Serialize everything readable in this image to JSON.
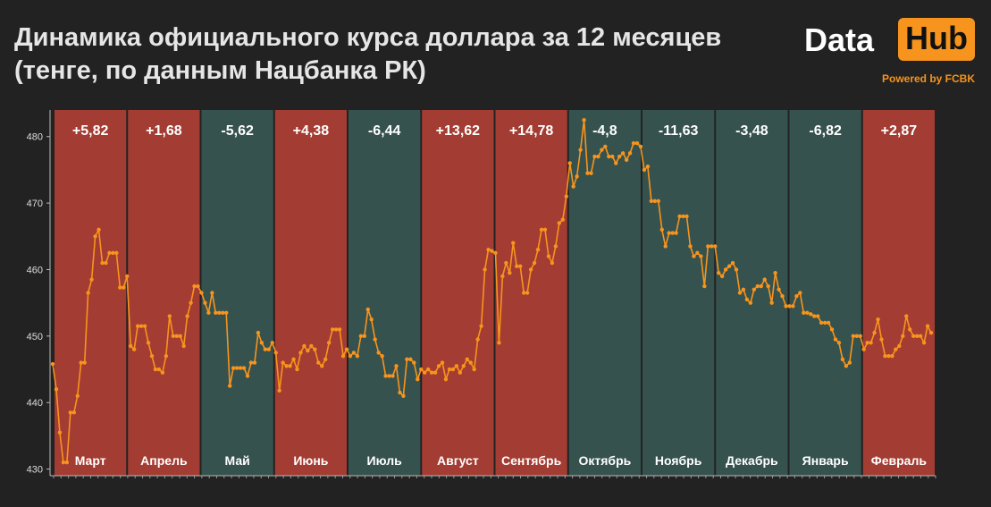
{
  "header": {
    "title": "Динамика официального курса доллара за 12 месяцев (тенге, по данным Нацбанка РК)"
  },
  "logo": {
    "left": "Data",
    "right": "Hub",
    "powered": "Powered by FCBK",
    "accent_color": "#f7941d"
  },
  "colors": {
    "background": "#222222",
    "up_band": "#a33c32",
    "down_band": "#36524e",
    "line": "#f7941d"
  },
  "chart_data": {
    "type": "line",
    "title": "Динамика официального курса доллара за 12 месяцев (тенге, по данным Нацбанка РК)",
    "ylim": [
      429,
      484
    ],
    "yticks": [
      430,
      440,
      450,
      460,
      470,
      480
    ],
    "grid": false,
    "months": [
      {
        "name": "Март",
        "change": "+5,82",
        "direction": "up"
      },
      {
        "name": "Апрель",
        "change": "+1,68",
        "direction": "up"
      },
      {
        "name": "Май",
        "change": "-5,62",
        "direction": "down"
      },
      {
        "name": "Июнь",
        "change": "+4,38",
        "direction": "up"
      },
      {
        "name": "Июль",
        "change": "-6,44",
        "direction": "down"
      },
      {
        "name": "Август",
        "change": "+13,62",
        "direction": "up"
      },
      {
        "name": "Сентябрь",
        "change": "+14,78",
        "direction": "up"
      },
      {
        "name": "Октябрь",
        "change": "-4,8",
        "direction": "down"
      },
      {
        "name": "Ноябрь",
        "change": "-11,63",
        "direction": "down"
      },
      {
        "name": "Декабрь",
        "change": "-3,48",
        "direction": "down"
      },
      {
        "name": "Январь",
        "change": "-6,82",
        "direction": "down"
      },
      {
        "name": "Февраль",
        "change": "+2,87",
        "direction": "up"
      }
    ],
    "series": [
      {
        "values": [
          445.8,
          442.0,
          435.5,
          431.0,
          431.0,
          438.5,
          438.5,
          441.0,
          446.0,
          446.0,
          456.5,
          458.5,
          465.0,
          466.0,
          461.0,
          461.0,
          462.5,
          462.5,
          462.5,
          457.3,
          457.3,
          459.0,
          448.5,
          448.0,
          451.5,
          451.5,
          451.5,
          449.0,
          447.0,
          445.0,
          445.0,
          444.5,
          447.0,
          453.0,
          450.0,
          450.0,
          450.0,
          448.5,
          453.0,
          455.0,
          457.5,
          457.5,
          456.5,
          455.0,
          453.5,
          456.5,
          453.5,
          453.5,
          453.5,
          453.5,
          442.5,
          445.2,
          445.2,
          445.2,
          445.2,
          444.0,
          446.0,
          446.0,
          450.5,
          449.0,
          448.0,
          448.0,
          449.0,
          447.5,
          441.8,
          446.0,
          445.5,
          445.5,
          446.5,
          445.0,
          447.5,
          448.5,
          447.8,
          448.5,
          448.0,
          446.0,
          445.5,
          446.5,
          449.0,
          451.0,
          451.0,
          451.0,
          447.0,
          448.0,
          447.0,
          447.5,
          447.0,
          450.0,
          450.0,
          454.0,
          452.5,
          449.5,
          447.5,
          447.0,
          444.0,
          444.0,
          444.0,
          445.5,
          441.5,
          441.0,
          446.5,
          446.5,
          446.0,
          443.5,
          445.0,
          444.5,
          445.0,
          444.5,
          444.5,
          445.5,
          446.0,
          443.5,
          445.0,
          445.0,
          445.5,
          444.5,
          445.5,
          446.5,
          446.0,
          445.0,
          449.5,
          451.5,
          460.0,
          463.0,
          462.8,
          462.5,
          449.0,
          459.0,
          461.0,
          459.5,
          464.0,
          460.5,
          460.5,
          456.5,
          456.5,
          460.0,
          461.0,
          463.0,
          466.0,
          466.0,
          462.0,
          461.0,
          463.5,
          467.0,
          467.5,
          471.0,
          476.0,
          472.5,
          474.0,
          478.0,
          482.5,
          474.5,
          474.5,
          477.0,
          477.0,
          478.0,
          478.5,
          477.0,
          477.0,
          476.0,
          477.0,
          477.5,
          476.5,
          477.5,
          479.0,
          479.0,
          478.5,
          475.0,
          475.5,
          470.3,
          470.3,
          470.3,
          466.0,
          463.5,
          465.5,
          465.5,
          465.5,
          468.0,
          468.0,
          468.0,
          463.5,
          462.0,
          462.5,
          462.0,
          457.5,
          463.5,
          463.5,
          463.5,
          459.5,
          459.0,
          460.0,
          460.5,
          461.0,
          460.0,
          456.5,
          457.0,
          455.5,
          455.0,
          457.0,
          457.5,
          457.5,
          458.5,
          457.5,
          455.0,
          459.5,
          457.0,
          456.0,
          454.5,
          454.5,
          454.5,
          456.0,
          456.5,
          453.5,
          453.5,
          453.3,
          453.0,
          453.0,
          452.0,
          452.0,
          452.0,
          451.0,
          449.5,
          449.0,
          446.5,
          445.5,
          446.0,
          450.0,
          450.0,
          450.0,
          448.0,
          449.0,
          449.0,
          450.5,
          452.5,
          449.5,
          447.0,
          447.0,
          447.0,
          448.0,
          448.5,
          450.0,
          453.0,
          451.0,
          450.0,
          450.0,
          450.0,
          449.0,
          451.5,
          450.5
        ]
      }
    ]
  }
}
